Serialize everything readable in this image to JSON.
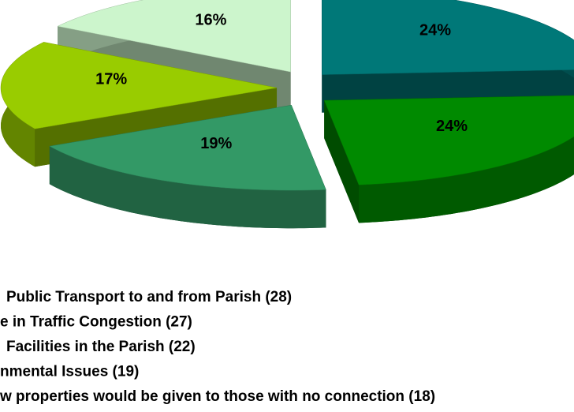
{
  "chart_data": {
    "type": "pie",
    "categories": [
      "Public Transport to and from Parish (28)",
      "e in Traffic Congestion (27)",
      "Facilities in the Parish (22)",
      "nmental Issues (19)",
      "w properties would be given to those with no connection (18)"
    ],
    "values": [
      24,
      24,
      19,
      17,
      16
    ],
    "value_labels": [
      "24%",
      "24%",
      "19%",
      "17%",
      "16%"
    ],
    "colors": [
      "#007878",
      "#008a00",
      "#339966",
      "#99cc00",
      "#ccf5cc"
    ]
  }
}
